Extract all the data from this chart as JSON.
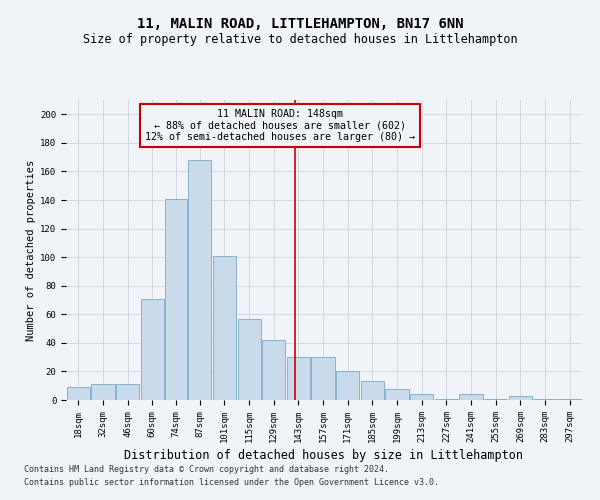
{
  "title": "11, MALIN ROAD, LITTLEHAMPTON, BN17 6NN",
  "subtitle": "Size of property relative to detached houses in Littlehampton",
  "xlabel": "Distribution of detached houses by size in Littlehampton",
  "ylabel": "Number of detached properties",
  "footnote1": "Contains HM Land Registry data © Crown copyright and database right 2024.",
  "footnote2": "Contains public sector information licensed under the Open Government Licence v3.0.",
  "annotation_line1": "11 MALIN ROAD: 148sqm",
  "annotation_line2": "← 88% of detached houses are smaller (602)",
  "annotation_line3": "12% of semi-detached houses are larger (80) →",
  "bar_color": "#c9daea",
  "bar_edge_color": "#7aaac8",
  "grid_color": "#d0d8e0",
  "vline_color": "#cc0000",
  "annotation_box_color": "#cc0000",
  "vline_x": 148,
  "bin_edges": [
    18,
    32,
    46,
    60,
    74,
    87,
    101,
    115,
    129,
    143,
    157,
    171,
    185,
    199,
    213,
    227,
    241,
    255,
    269,
    283,
    297,
    311
  ],
  "bar_heights": [
    9,
    11,
    11,
    71,
    141,
    168,
    101,
    57,
    42,
    30,
    30,
    20,
    13,
    8,
    4,
    1,
    4,
    1,
    3,
    1,
    1
  ],
  "xlim": [
    18,
    311
  ],
  "ylim": [
    0,
    210
  ],
  "yticks": [
    0,
    20,
    40,
    60,
    80,
    100,
    120,
    140,
    160,
    180,
    200
  ],
  "background_color": "#f0f4f8",
  "title_fontsize": 10,
  "subtitle_fontsize": 8.5,
  "xlabel_fontsize": 8.5,
  "ylabel_fontsize": 7.5,
  "tick_fontsize": 6.5,
  "footnote_fontsize": 6.0
}
